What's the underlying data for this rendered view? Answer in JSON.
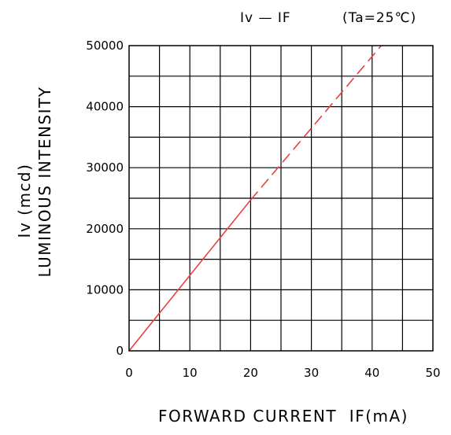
{
  "chart_data": {
    "type": "line",
    "title_main": "Iv — IF",
    "title_condition": "(Ta=25℃)",
    "xlabel": "FORWARD CURRENT  IF(mA)",
    "ylabel_line1": "Iv (mcd)",
    "ylabel_line2": "LUMINOUS INTENSITY",
    "xlim": [
      0,
      50
    ],
    "ylim": [
      0,
      50000
    ],
    "x_tick_labels": [
      "0",
      "10",
      "20",
      "30",
      "40",
      "50"
    ],
    "y_tick_labels": [
      "0",
      "10000",
      "20000",
      "30000",
      "40000",
      "50000"
    ],
    "grid": true,
    "series": [
      {
        "style": "solid",
        "color": "#e8403f",
        "points": [
          [
            0,
            0
          ],
          [
            20,
            24700
          ]
        ]
      },
      {
        "style": "dashed",
        "color": "#e8403f",
        "points": [
          [
            20,
            24700
          ],
          [
            41.5,
            50000
          ]
        ]
      }
    ]
  }
}
